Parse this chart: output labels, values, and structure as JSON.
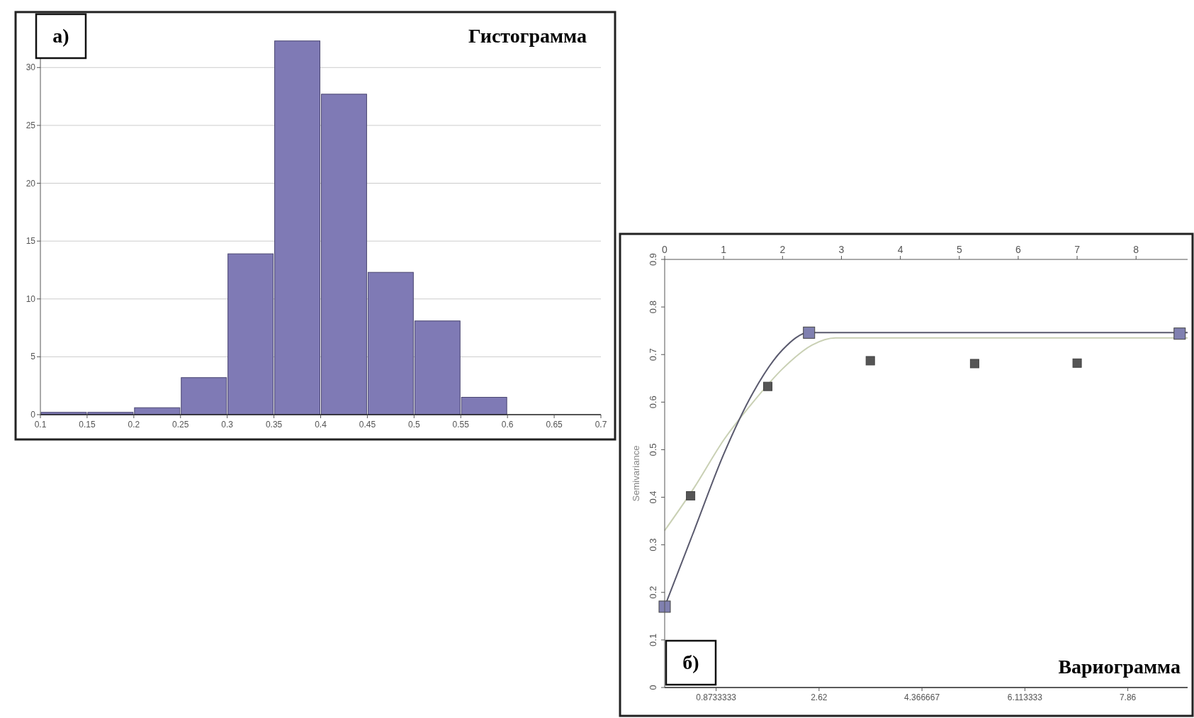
{
  "chart_data": [
    {
      "type": "histogram",
      "title": "Гистограмма",
      "annotations": [
        "а)"
      ],
      "bins": [
        0.1,
        0.15,
        0.2,
        0.25,
        0.3,
        0.35,
        0.4,
        0.45,
        0.5,
        0.55,
        0.6,
        0.65,
        0.7
      ],
      "values": [
        0.2,
        0.2,
        0.6,
        3.2,
        13.9,
        32.3,
        27.7,
        12.3,
        8.1,
        1.5,
        0,
        0
      ],
      "color": "#7f7ab5",
      "xlim": [
        0.1,
        0.7
      ],
      "xticks": [
        0.1,
        0.15,
        0.2,
        0.25,
        0.3,
        0.35,
        0.4,
        0.45,
        0.5,
        0.55,
        0.6,
        0.65,
        0.7
      ],
      "ylim": [
        0,
        34
      ],
      "yticks": [
        0,
        5,
        10,
        15,
        20,
        25,
        30
      ],
      "grid": "y"
    },
    {
      "type": "scatter",
      "title": "Вариограмма",
      "ylabel": "Semivariance",
      "annotations": [
        "б)"
      ],
      "xlim": [
        0,
        8.875
      ],
      "xticks": [
        0.8733333,
        2.62,
        4.366667,
        6.113333,
        7.86
      ],
      "x2lim": [
        0,
        8.875
      ],
      "x2ticks": [
        0,
        1,
        2,
        3,
        4,
        5,
        6,
        7,
        8
      ],
      "ylim": [
        0,
        0.9
      ],
      "yticks": [
        0,
        0.1,
        0.2,
        0.3,
        0.4,
        0.5,
        0.6,
        0.7,
        0.8,
        0.9
      ],
      "series": [
        {
          "type": "line",
          "color": "#c9d0b4",
          "x": [
            0,
            0.5,
            1,
            1.5,
            2,
            2.5,
            2.9,
            8.875
          ],
          "values": [
            0.33,
            0.42,
            0.52,
            0.6,
            0.67,
            0.72,
            0.735,
            0.735
          ]
        },
        {
          "type": "line",
          "color": "#5a5a6e",
          "x": [
            0,
            0.5,
            1,
            1.5,
            2,
            2.45,
            8.875
          ],
          "values": [
            0.17,
            0.33,
            0.49,
            0.62,
            0.71,
            0.746,
            0.746
          ]
        },
        {
          "type": "scatter",
          "marker": "square",
          "color": "#555555",
          "x": [
            0.44,
            1.75,
            3.49,
            5.26,
            7.0
          ],
          "values": [
            0.403,
            0.633,
            0.687,
            0.681,
            0.682
          ]
        },
        {
          "type": "scatter",
          "marker": "square",
          "color": "#8080b0",
          "x": [
            0,
            2.45,
            8.74
          ],
          "values": [
            0.17,
            0.746,
            0.744
          ]
        }
      ]
    }
  ]
}
